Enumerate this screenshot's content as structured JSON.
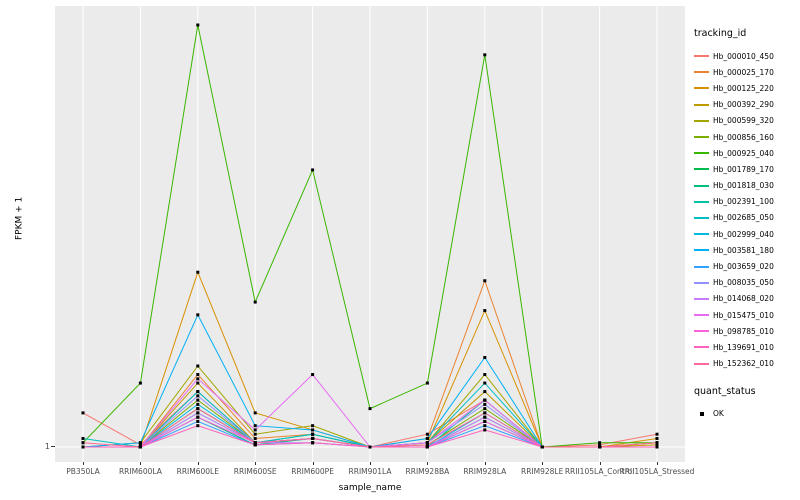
{
  "figure": {
    "background": "#FFFFFF",
    "panel_bg": "#EBEBEB",
    "grid_color": "#FFFFFF",
    "point_color": "#000000"
  },
  "axes": {
    "x_title": "sample_name",
    "y_title": "FPKM + 1",
    "y_tick_label": "1"
  },
  "legend": {
    "color_title": "tracking_id",
    "shape_title": "quant_status",
    "shape_items": [
      {
        "label": "OK",
        "color": "#000000"
      }
    ]
  },
  "chart_data": {
    "type": "line",
    "title": "",
    "xlabel": "sample_name",
    "ylabel": "FPKM + 1",
    "y_ticks": [
      1
    ],
    "ylim": [
      1,
      100
    ],
    "grid": true,
    "legend_position": "right",
    "x_categories": [
      "PB350LA",
      "RRIM600LA",
      "RRIM600LE",
      "RRIM600SE",
      "RRIM600PE",
      "RRIM901LA",
      "RRIM928BA",
      "RRIM928LA",
      "RRIM928LE",
      "RRII105LA_Control",
      "RRII105LA_Stressed"
    ],
    "series": [
      {
        "name": "Hb_000010_450",
        "color": "#F8766D",
        "values": [
          9,
          1.5,
          14,
          2,
          3,
          1,
          4,
          12,
          1,
          1.5,
          4
        ]
      },
      {
        "name": "Hb_000025_170",
        "color": "#EA8331",
        "values": [
          1,
          1,
          18,
          3,
          4,
          1,
          3,
          40,
          1,
          1,
          2
        ]
      },
      {
        "name": "Hb_000125_220",
        "color": "#D89000",
        "values": [
          1,
          1,
          42,
          9,
          5,
          1,
          2,
          33,
          1,
          1,
          3
        ]
      },
      {
        "name": "Hb_000392_290",
        "color": "#C09B00",
        "values": [
          1,
          1,
          16,
          2,
          3,
          1,
          2,
          14,
          1,
          1,
          1.5
        ]
      },
      {
        "name": "Hb_000599_320",
        "color": "#A3A500",
        "values": [
          1,
          2,
          20,
          4,
          6,
          1,
          2,
          18,
          1,
          1,
          2
        ]
      },
      {
        "name": "Hb_000856_160",
        "color": "#7CAE00",
        "values": [
          1,
          1,
          12,
          2,
          3,
          1,
          1.5,
          10,
          1,
          1,
          1
        ]
      },
      {
        "name": "Hb_000925_040",
        "color": "#39B600",
        "values": [
          2,
          16,
          100,
          35,
          66,
          10,
          16,
          93,
          1,
          2,
          2
        ]
      },
      {
        "name": "Hb_001789_170",
        "color": "#00BB4E",
        "values": [
          1,
          1,
          10,
          2,
          4,
          1,
          1,
          8,
          1,
          1,
          1
        ]
      },
      {
        "name": "Hb_001818_030",
        "color": "#00BF7D",
        "values": [
          1,
          1,
          8,
          1.5,
          3,
          1,
          1,
          7,
          1,
          1,
          1
        ]
      },
      {
        "name": "Hb_002391_100",
        "color": "#00C1A3",
        "values": [
          1,
          1,
          9,
          2,
          3,
          1,
          1,
          12,
          1,
          1,
          1
        ]
      },
      {
        "name": "Hb_002685_050",
        "color": "#00BFC4",
        "values": [
          3,
          1,
          14,
          2,
          4,
          1,
          2,
          16,
          1,
          1,
          1
        ]
      },
      {
        "name": "Hb_002999_040",
        "color": "#00BAE0",
        "values": [
          1,
          1,
          11,
          2,
          3,
          1,
          1,
          9,
          1,
          1,
          1
        ]
      },
      {
        "name": "Hb_003581_180",
        "color": "#00B0F6",
        "values": [
          1,
          2,
          32,
          6,
          5,
          1,
          3,
          22,
          1,
          1,
          1
        ]
      },
      {
        "name": "Hb_003659_020",
        "color": "#35A2FF",
        "values": [
          1,
          1,
          7,
          1.5,
          2,
          1,
          1,
          6,
          1,
          1,
          1
        ]
      },
      {
        "name": "Hb_008035_050",
        "color": "#9590FF",
        "values": [
          1,
          1,
          13,
          2,
          3,
          1,
          2,
          11,
          1,
          1,
          1
        ]
      },
      {
        "name": "Hb_014068_020",
        "color": "#C77CFF",
        "values": [
          1,
          1,
          9,
          2,
          2,
          1,
          1,
          8,
          1,
          1,
          1
        ]
      },
      {
        "name": "Hb_015475_010",
        "color": "#E76BF3",
        "values": [
          1,
          1,
          17,
          5,
          18,
          1,
          2,
          12,
          1,
          1,
          1
        ]
      },
      {
        "name": "Hb_098785_010",
        "color": "#FA62DB",
        "values": [
          1,
          1,
          8,
          2,
          3,
          1,
          1,
          7,
          1,
          1,
          1
        ]
      },
      {
        "name": "Hb_139691_010",
        "color": "#FF62BC",
        "values": [
          1,
          1,
          6,
          1.5,
          2,
          1,
          1,
          5,
          1,
          1,
          1
        ]
      },
      {
        "name": "Hb_152362_010",
        "color": "#FF6A98",
        "values": [
          2,
          1,
          10,
          2,
          3,
          1,
          1.5,
          9,
          1,
          1,
          2
        ]
      }
    ]
  }
}
